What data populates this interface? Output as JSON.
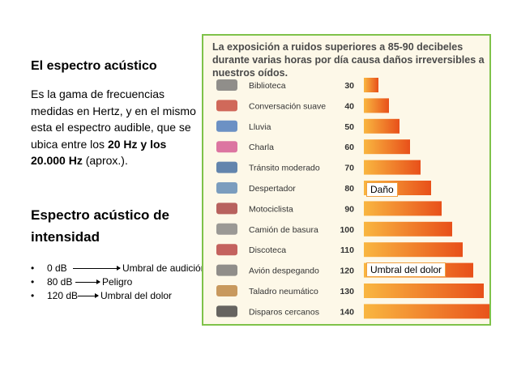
{
  "left": {
    "heading1": "El espectro acústico",
    "para_parts": [
      "Es la gama de frecuencias medidas en Hertz, y en el mismo esta el espectro audible,  que se ubica entre los ",
      "20 Hz y los 20.000 Hz",
      " (aprox.)."
    ],
    "heading2": "Espectro acústico de intensidad",
    "bullets": [
      {
        "dot": "•",
        "level": "0 dB",
        "desc": "Umbral de audición"
      },
      {
        "dot": "•",
        "level": "80 dB",
        "desc": "Peligro"
      },
      {
        "dot": "•",
        "level": "120 dB",
        "desc": "Umbral del dolor"
      }
    ]
  },
  "panel": {
    "title": "La exposición a ruidos superiores a 85-90 decibeles durante varias horas por día causa daños irreversibles a nuestros oídos."
  },
  "annotations": {
    "dano": "Daño",
    "dolor": "Umbral del dolor"
  },
  "chart_data": {
    "type": "bar",
    "orientation": "horizontal",
    "categories": [
      "Biblioteca",
      "Conversación suave",
      "Lluvia",
      "Charla",
      "Tránsito moderado",
      "Despertador",
      "Motociclista",
      "Camión de basura",
      "Discoteca",
      "Avión despegando",
      "Taladro neumático",
      "Disparos cercanos"
    ],
    "values": [
      30,
      40,
      50,
      60,
      70,
      80,
      90,
      100,
      110,
      120,
      130,
      140
    ],
    "icons": [
      "book-icon",
      "az-letters-icon",
      "rain-icon",
      "letters-icon",
      "car-icon",
      "alarm-clock-icon",
      "motorcycle-icon",
      "truck-icon",
      "music-notes-icon",
      "airplane-icon",
      "drill-icon",
      "gun-icon"
    ],
    "colors": {
      "start": "#f7a030",
      "end": "#e8501a",
      "panel_border": "#7fc24a",
      "panel_bg": "#fdf8e8",
      "label": "#333333"
    }
  }
}
